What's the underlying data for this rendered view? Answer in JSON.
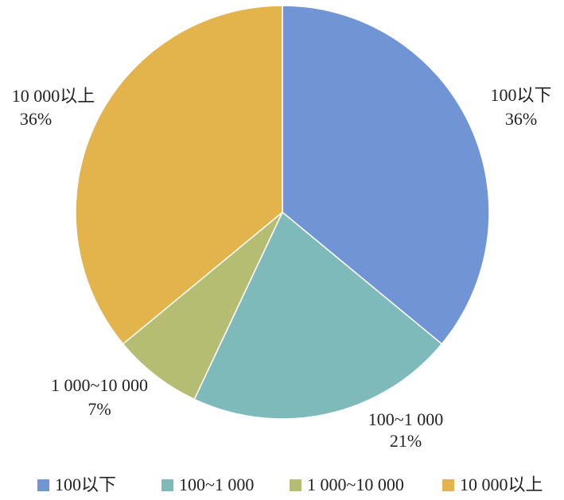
{
  "chart_data": {
    "type": "pie",
    "categories": [
      "100以下",
      "100~1 000",
      "1 000~10 000",
      "10 000以上"
    ],
    "values": [
      36,
      21,
      7,
      36
    ],
    "value_labels": [
      "36%",
      "21%",
      "7%",
      "36%"
    ],
    "colors": [
      "#7094d4",
      "#7fbaba",
      "#b5bd72",
      "#e3b44b"
    ],
    "legend": "bottom"
  }
}
